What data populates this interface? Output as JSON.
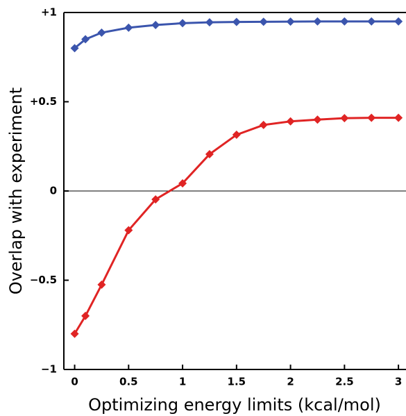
{
  "chart_data": {
    "type": "line",
    "x_label": "Optimizing energy limits (kcal/mol)",
    "y_label": "Overlap with experiment",
    "xlim": [
      -0.1,
      3.07
    ],
    "ylim": [
      -1,
      1
    ],
    "xticks": [
      0,
      0.5,
      1,
      1.5,
      2,
      2.5,
      3
    ],
    "yticks": [
      {
        "value": -1,
        "label": "−1"
      },
      {
        "value": -0.5,
        "label": "−0.5"
      },
      0,
      {
        "value": 0.5,
        "label": "+0.5"
      },
      {
        "value": 1,
        "label": "+1"
      }
    ],
    "reference_line": 0,
    "x": [
      0,
      0.1,
      0.25,
      0.5,
      0.75,
      1,
      1.25,
      1.5,
      1.75,
      2,
      2.25,
      2.5,
      2.75,
      3
    ],
    "series": [
      {
        "color": "#3b55ad",
        "values": [
          0.8,
          0.85,
          0.887,
          0.915,
          0.93,
          0.94,
          0.945,
          0.947,
          0.948,
          0.949,
          0.95,
          0.95,
          0.95,
          0.95
        ]
      },
      {
        "color": "#e02424",
        "values": [
          -0.8,
          -0.7,
          -0.525,
          -0.22,
          -0.047,
          0.043,
          0.206,
          0.315,
          0.37,
          0.39,
          0.4,
          0.408,
          0.41,
          0.41
        ]
      }
    ]
  }
}
